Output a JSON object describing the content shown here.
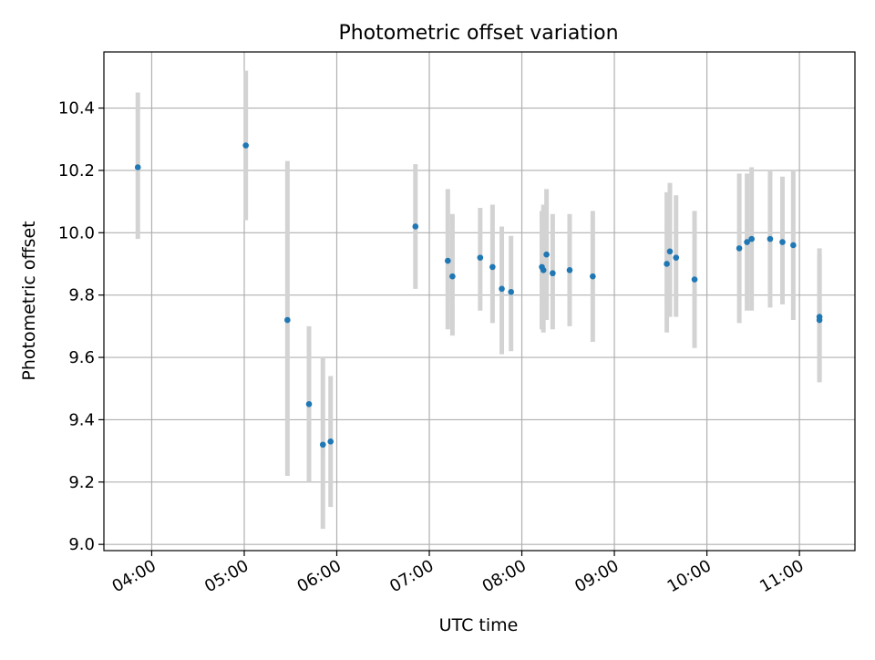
{
  "chart_data": {
    "type": "scatter",
    "title": "Photometric offset variation",
    "xlabel": "UTC time",
    "ylabel": "Photometric offset",
    "xlim": [
      "03:29",
      "11:36"
    ],
    "ylim": [
      8.98,
      10.58
    ],
    "x_ticks": [
      "04:00",
      "05:00",
      "06:00",
      "07:00",
      "08:00",
      "09:00",
      "10:00",
      "11:00"
    ],
    "y_ticks": [
      9.0,
      9.2,
      9.4,
      9.6,
      9.8,
      10.0,
      10.2,
      10.4
    ],
    "grid": true,
    "colors": {
      "point": "#1f77b4",
      "errorbar": "#d3d3d3",
      "grid": "#b0b0b0"
    },
    "series": [
      {
        "points": [
          {
            "x": "03:51",
            "y": 10.21,
            "ylo": 9.98,
            "yhi": 10.45
          },
          {
            "x": "05:01",
            "y": 10.28,
            "ylo": 10.04,
            "yhi": 10.52
          },
          {
            "x": "05:28",
            "y": 9.72,
            "ylo": 9.22,
            "yhi": 10.23
          },
          {
            "x": "05:42",
            "y": 9.45,
            "ylo": 9.2,
            "yhi": 9.7
          },
          {
            "x": "05:51",
            "y": 9.32,
            "ylo": 9.05,
            "yhi": 9.6
          },
          {
            "x": "05:56",
            "y": 9.33,
            "ylo": 9.12,
            "yhi": 9.54
          },
          {
            "x": "06:51",
            "y": 10.02,
            "ylo": 9.82,
            "yhi": 10.22
          },
          {
            "x": "07:12",
            "y": 9.91,
            "ylo": 9.69,
            "yhi": 10.14
          },
          {
            "x": "07:15",
            "y": 9.86,
            "ylo": 9.67,
            "yhi": 10.06
          },
          {
            "x": "07:33",
            "y": 9.92,
            "ylo": 9.75,
            "yhi": 10.08
          },
          {
            "x": "07:41",
            "y": 9.89,
            "ylo": 9.71,
            "yhi": 10.09
          },
          {
            "x": "07:47",
            "y": 9.82,
            "ylo": 9.61,
            "yhi": 10.02
          },
          {
            "x": "07:53",
            "y": 9.81,
            "ylo": 9.62,
            "yhi": 9.99
          },
          {
            "x": "08:13",
            "y": 9.89,
            "ylo": 9.69,
            "yhi": 10.07
          },
          {
            "x": "08:14",
            "y": 9.88,
            "ylo": 9.68,
            "yhi": 10.09
          },
          {
            "x": "08:16",
            "y": 9.93,
            "ylo": 9.72,
            "yhi": 10.14
          },
          {
            "x": "08:20",
            "y": 9.87,
            "ylo": 9.69,
            "yhi": 10.06
          },
          {
            "x": "08:31",
            "y": 9.88,
            "ylo": 9.7,
            "yhi": 10.06
          },
          {
            "x": "08:46",
            "y": 9.86,
            "ylo": 9.65,
            "yhi": 10.07
          },
          {
            "x": "09:34",
            "y": 9.9,
            "ylo": 9.68,
            "yhi": 10.13
          },
          {
            "x": "09:36",
            "y": 9.94,
            "ylo": 9.73,
            "yhi": 10.16
          },
          {
            "x": "09:40",
            "y": 9.92,
            "ylo": 9.73,
            "yhi": 10.12
          },
          {
            "x": "09:52",
            "y": 9.85,
            "ylo": 9.63,
            "yhi": 10.07
          },
          {
            "x": "10:21",
            "y": 9.95,
            "ylo": 9.71,
            "yhi": 10.19
          },
          {
            "x": "10:26",
            "y": 9.97,
            "ylo": 9.75,
            "yhi": 10.19
          },
          {
            "x": "10:29",
            "y": 9.98,
            "ylo": 9.75,
            "yhi": 10.21
          },
          {
            "x": "10:41",
            "y": 9.98,
            "ylo": 9.76,
            "yhi": 10.2
          },
          {
            "x": "10:49",
            "y": 9.97,
            "ylo": 9.77,
            "yhi": 10.18
          },
          {
            "x": "10:56",
            "y": 9.96,
            "ylo": 9.72,
            "yhi": 10.2
          },
          {
            "x": "11:13",
            "y": 9.73,
            "ylo": 9.52,
            "yhi": 9.95
          },
          {
            "x": "11:13",
            "y": 9.72,
            "ylo": 9.53,
            "yhi": 9.93
          }
        ]
      }
    ]
  }
}
